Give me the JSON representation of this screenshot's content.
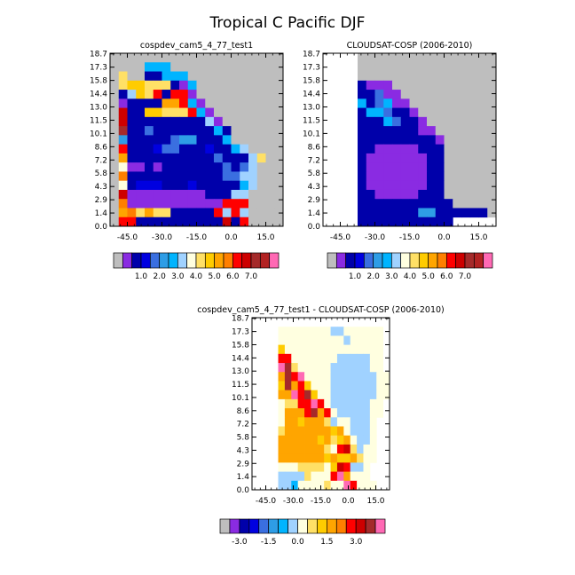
{
  "figure": {
    "title": "Tropical C Pacific DJF"
  },
  "palettes": {
    "absolute": [
      "#bebebe",
      "#8a2be2",
      "#0000aa",
      "#0000e0",
      "#3a6fe0",
      "#2e9de6",
      "#00b4ff",
      "#a0d2ff",
      "#ffffe0",
      "#ffe066",
      "#ffcc00",
      "#ffa500",
      "#ff7f00",
      "#ff0000",
      "#cd0000",
      "#a52a2a",
      "#b22222",
      "#ff69b4"
    ],
    "difference": [
      "#bebebe",
      "#8a2be2",
      "#0000aa",
      "#0000e0",
      "#3a6fe0",
      "#2e9de6",
      "#00b4ff",
      "#a0d2ff",
      "#ffffe0",
      "#ffe066",
      "#ffcc00",
      "#ffa500",
      "#ff7f00",
      "#ff0000",
      "#cd0000",
      "#a52a2a",
      "#ff69b4"
    ]
  },
  "chart_data": [
    {
      "type": "heatmap",
      "title": "cospdev_cam5_4_77_test1",
      "x_tick_labels": [
        "-45.0",
        "-30.0",
        "-15.0",
        "0.0",
        "15.0"
      ],
      "x_tick_values": [
        -45,
        -30,
        -15,
        0,
        15
      ],
      "xlim": [
        -52.5,
        22.5
      ],
      "y_tick_labels": [
        "0.0",
        "1.4",
        "2.9",
        "4.3",
        "5.8",
        "7.2",
        "8.6",
        "10.1",
        "11.5",
        "13.0",
        "14.4",
        "15.8",
        "17.3",
        "18.7"
      ],
      "colorbar_labels": [
        "1.0",
        "2.0",
        "3.0",
        "4.0",
        "5.0",
        "6.0",
        "7.0"
      ],
      "palette": "absolute",
      "grid_rows": [
        "hhhhhhhhhhhhhhhhhhhh",
        "hhhh666hhhhhhhhhhhhh",
        "h9hh22666hhhhhhhhhhh",
        "h9aa999216hhhhhhhhhh",
        "h27a9d2dd1hhhhhhhhhh",
        "h12222bbd61hhhhhhhhh",
        "he22aa999d61hhhhhhhh",
        "he22222222271hhhhhhh",
        "hf224222222262hhhhhh",
        "h5222224552226hhhhhh",
        "hd22234422232267hhhh",
        "hb2222222222422279hh",
        "h8112122222224247hhh",
        "hc222222222224477hhh",
        "h8233322232222267hhh",
        "he11111111122277hhhh",
        "hc11111111111dddhhhh",
        "hbc9b9922222d7d7hhhh",
        "hdd2222222222e2dhhhh"
      ]
    },
    {
      "type": "heatmap",
      "title": "CLOUDSAT-COSP (2006-2010)",
      "x_tick_labels": [
        "-45.0",
        "-30.0",
        "-15.0",
        "0.0",
        "15.0"
      ],
      "x_tick_values": [
        -45,
        -30,
        -15,
        0,
        15
      ],
      "xlim": [
        -52.5,
        22.5
      ],
      "y_tick_labels": [
        "0.0",
        "1.4",
        "2.9",
        "4.3",
        "5.8",
        "7.2",
        "8.6",
        "10.1",
        "11.5",
        "13.0",
        "14.4",
        "15.8",
        "17.3",
        "18.7"
      ],
      "colorbar_labels": [
        "1.0",
        "2.0",
        "3.0",
        "4.0",
        "5.0",
        "6.0",
        "7.0"
      ],
      "palette": "absolute",
      "grid_rows": [
        "wwwwhhhhhhhhhhhhhhhh",
        "wwwwhhhhhhhhhhhhhhhh",
        "wwwwhhhhhhhhhhhhhhhh",
        "wwww2111hhhhhhhhhhhh",
        "wwww22411hhhhhhhhhhh",
        "wwww624611hhhhhhhhhh",
        "wwww2664221hhhhhhhhh",
        "wwww22264221hhhhhhhh",
        "wwww222222211hhhhhhh",
        "wwww2222222221hhhhhh",
        "wwww2211111222hhhhhh",
        "wwww2111111122hhhhhh",
        "wwww2111111122hhhhhh",
        "wwww2111111122hhhhhh",
        "wwww2111111122hhhhhh",
        "wwww2211111222hhhhhh",
        "wwww22222222222hhhhh",
        "wwww222222255222222h",
        "wwww22222222222wwwww"
      ]
    },
    {
      "type": "heatmap",
      "title": "cospdev_cam5_4_77_test1 - CLOUDSAT-COSP (2006-2010)",
      "x_tick_labels": [
        "-45.0",
        "-30.0",
        "-15.0",
        "0.0",
        "15.0"
      ],
      "x_tick_values": [
        -45,
        -30,
        -15,
        0,
        15
      ],
      "xlim": [
        -52.5,
        22.5
      ],
      "y_tick_labels": [
        "0.0",
        "1.4",
        "2.9",
        "4.3",
        "5.8",
        "7.2",
        "8.6",
        "10.1",
        "11.5",
        "13.0",
        "14.4",
        "15.8",
        "17.3",
        "18.7"
      ],
      "colorbar_labels": [
        "-3.0",
        "-1.5",
        "0.0",
        "1.5",
        "3.0"
      ],
      "palette": "difference",
      "grid_rows": [
        "wwwwwwwwwwwwwwwwwwww",
        "wwww8888888877888888",
        "wwww8888888888788888",
        "wwwwa888888888888888",
        "wwwwdd88888887777788",
        "wwwwgf98888877777788",
        "wwwwbfdg8888777777788",
        "wwwwafbda888777777788",
        "wwwwbbgdfa88777777788",
        "wwww899ddgd877777788",
        "wwww8bbbdfbd87777788",
        "wwww8bbabbb97887778",
        "wwww9bbbbbbbab87778",
        "wwwwbbbbbbab9ab8778",
        "wwwwbbbbbbb98de9788",
        "wwwwbbbbbbbabaab988",
        "wwww88899998aed778",
        "wwww77779888dgb888",
        "wwww7768888988gd888"
      ]
    }
  ]
}
